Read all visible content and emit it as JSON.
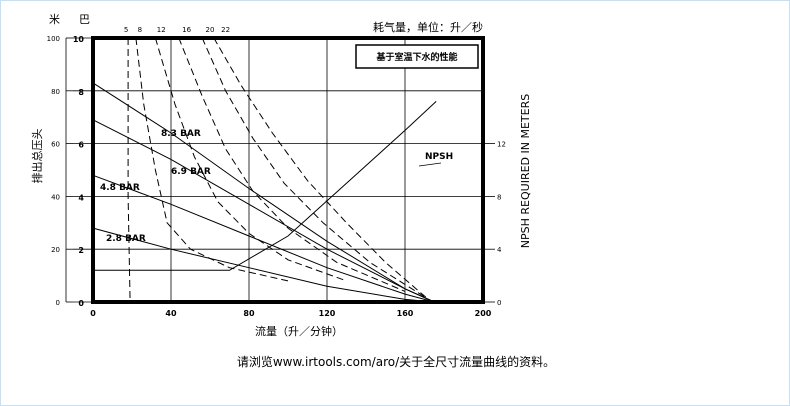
{
  "chart_data": {
    "type": "line",
    "header": {
      "left_unit_top": "米",
      "left_unit_bottom": "巴",
      "air_label": "耗气量，单位：升／秒"
    },
    "legend_box": "基于室温下水的性能",
    "xlabel": "流量（升／分钟）",
    "ylabel": "排出总压头",
    "right_ylabel": "NPSH REQUIRED IN METERS",
    "x_ticks": [
      0,
      40,
      80,
      120,
      160,
      200
    ],
    "xlim": [
      0,
      200
    ],
    "meters_ticks": [
      0,
      20,
      40,
      60,
      80,
      100
    ],
    "bar_ticks": [
      0,
      2,
      4,
      6,
      8,
      10
    ],
    "npsh_ticks": [
      0,
      4,
      8,
      12
    ],
    "ylim_meters": [
      0,
      100
    ],
    "ylim_bar": [
      0,
      10
    ],
    "npsh_lim": [
      0,
      20
    ],
    "grid": true,
    "air_consumption_ticks": [
      "5",
      "8",
      "12",
      "16",
      "20",
      "22"
    ],
    "pressure_labels": [
      "8.3 BAR",
      "6.9 BAR",
      "4.8 BAR",
      "2.8 BAR"
    ],
    "pressure_series": [
      {
        "name": "8.3 BAR",
        "x": [
          0,
          40,
          80,
          120,
          160,
          175
        ],
        "y": [
          83,
          64,
          43,
          23,
          5,
          0
        ]
      },
      {
        "name": "6.9 BAR",
        "x": [
          0,
          40,
          80,
          120,
          160,
          175
        ],
        "y": [
          69,
          54,
          37,
          20,
          5,
          0
        ]
      },
      {
        "name": "4.8 BAR",
        "x": [
          0,
          40,
          80,
          120,
          160,
          175
        ],
        "y": [
          48,
          37,
          25,
          13,
          3,
          0
        ]
      },
      {
        "name": "2.8 BAR",
        "x": [
          0,
          40,
          80,
          120,
          160,
          175
        ],
        "y": [
          28,
          20,
          13,
          6,
          1,
          0
        ]
      }
    ],
    "air_curves": [
      {
        "x": [
          18,
          18,
          18,
          19
        ],
        "y": [
          100,
          70,
          40,
          0
        ]
      },
      {
        "x": [
          22,
          26,
          32,
          38,
          50,
          70,
          100
        ],
        "y": [
          100,
          75,
          50,
          30,
          20,
          13,
          8
        ]
      },
      {
        "x": [
          32,
          42,
          52,
          64,
          80,
          100,
          130
        ],
        "y": [
          100,
          75,
          55,
          38,
          26,
          16,
          8
        ]
      },
      {
        "x": [
          44,
          56,
          68,
          82,
          100,
          125,
          160
        ],
        "y": [
          100,
          78,
          58,
          42,
          28,
          15,
          4
        ]
      },
      {
        "x": [
          56,
          68,
          82,
          98,
          118,
          142,
          170
        ],
        "y": [
          100,
          80,
          62,
          45,
          30,
          15,
          2
        ]
      },
      {
        "x": [
          62,
          76,
          92,
          110,
          130,
          150,
          172
        ],
        "y": [
          100,
          82,
          64,
          46,
          30,
          15,
          1
        ]
      }
    ],
    "npsh": {
      "name": "NPSH",
      "x": [
        0,
        70,
        100,
        130,
        160,
        176
      ],
      "y": [
        2.4,
        2.4,
        5.0,
        9.0,
        13.0,
        15.2
      ]
    }
  },
  "footnote": "请浏览www.irtools.com/aro/关于全尺寸流量曲线的资料。"
}
